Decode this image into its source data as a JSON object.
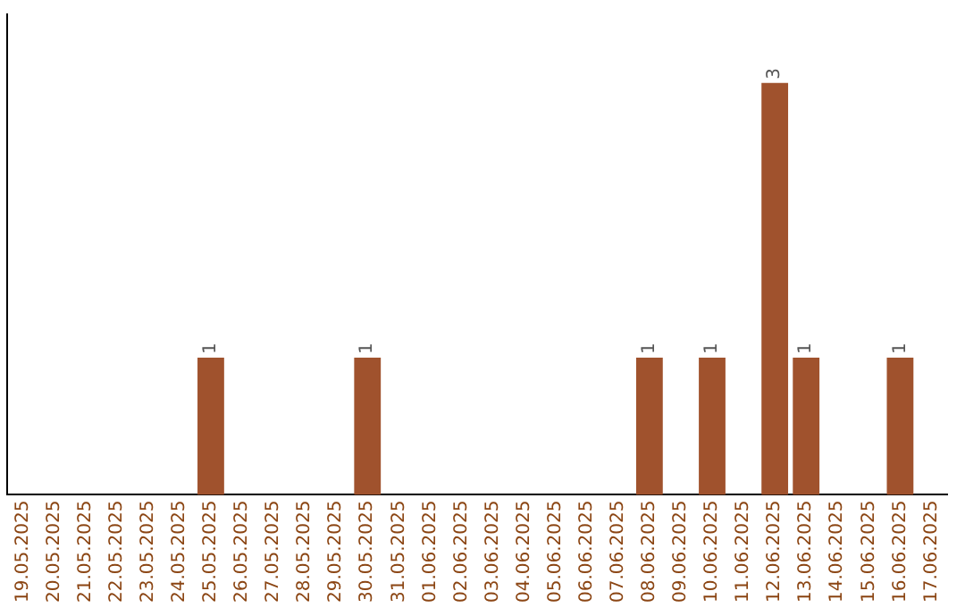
{
  "chart_data": {
    "type": "bar",
    "relative": false,
    "categories": [
      "19.05.2025",
      "20.05.2025",
      "21.05.2025",
      "22.05.2025",
      "23.05.2025",
      "24.05.2025",
      "25.05.2025",
      "26.05.2025",
      "27.05.2025",
      "28.05.2025",
      "29.05.2025",
      "30.05.2025",
      "31.05.2025",
      "01.06.2025",
      "02.06.2025",
      "03.06.2025",
      "04.06.2025",
      "05.06.2025",
      "06.06.2025",
      "07.06.2025",
      "08.06.2025",
      "09.06.2025",
      "10.06.2025",
      "11.06.2025",
      "12.06.2025",
      "13.06.2025",
      "14.06.2025",
      "15.06.2025",
      "16.06.2025",
      "17.06.2025"
    ],
    "values": [
      0,
      0,
      0,
      0,
      0,
      0,
      1,
      0,
      0,
      0,
      0,
      1,
      0,
      0,
      0,
      0,
      0,
      0,
      0,
      0,
      1,
      0,
      1,
      0,
      3,
      1,
      0,
      0,
      1,
      0
    ],
    "value_labels": [
      null,
      null,
      null,
      null,
      null,
      null,
      "1",
      null,
      null,
      null,
      null,
      "1",
      null,
      null,
      null,
      null,
      null,
      null,
      null,
      null,
      "1",
      null,
      "1",
      null,
      "3",
      "1",
      null,
      null,
      "1",
      null
    ],
    "color": "#a0522d",
    "grid": false,
    "legend": false,
    "tick_labels": "x"
  }
}
